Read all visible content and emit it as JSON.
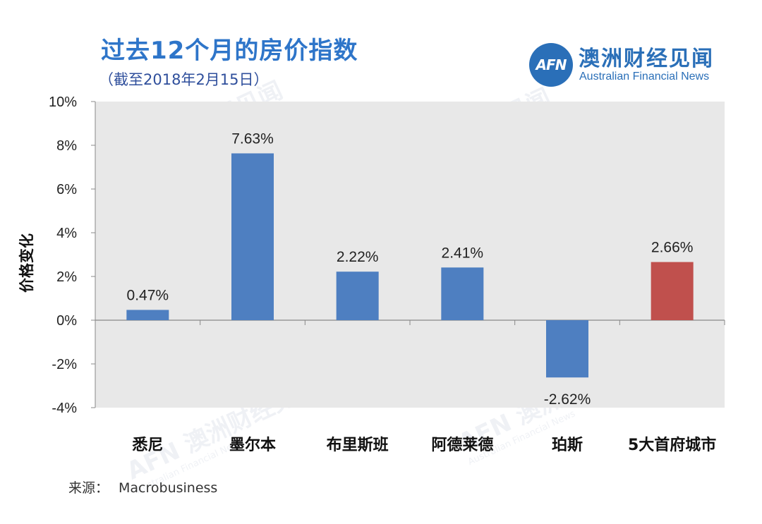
{
  "title": "过去12个月的房价指数",
  "subtitle": "（截至2018年2月15日）",
  "logo": {
    "mark": "AFN",
    "cn": "澳洲财经见闻",
    "en": "Australian Financial News"
  },
  "source": {
    "label": "来源：",
    "value": "Macrobusiness"
  },
  "colors": {
    "bar_default": "#4e7fc1",
    "bar_highlight": "#c0504d",
    "plot_bg": "#e8e8e8"
  },
  "chart_data": {
    "type": "bar",
    "title": "过去12个月的房价指数",
    "ylabel": "价格变化",
    "xlabel": "",
    "ylim": [
      -4,
      10
    ],
    "yticks": [
      -4,
      -2,
      0,
      2,
      4,
      6,
      8,
      10
    ],
    "ytick_labels": [
      "-4%",
      "-2%",
      "0%",
      "2%",
      "4%",
      "6%",
      "8%",
      "10%"
    ],
    "categories": [
      "悉尼",
      "墨尔本",
      "布里斯班",
      "阿德莱德",
      "珀斯",
      "5大首府城市"
    ],
    "values": [
      0.47,
      7.63,
      2.22,
      2.41,
      -2.62,
      2.66
    ],
    "data_labels": [
      "0.47%",
      "7.63%",
      "2.22%",
      "2.41%",
      "-2.62%",
      "2.66%"
    ],
    "highlight": [
      false,
      false,
      false,
      false,
      false,
      true
    ],
    "grid": false
  }
}
